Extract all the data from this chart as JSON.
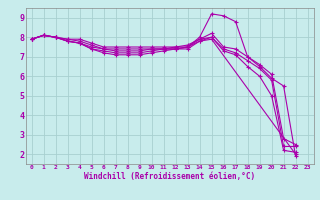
{
  "title": "",
  "xlabel": "Windchill (Refroidissement éolien,°C)",
  "bg_color": "#c8ecec",
  "grid_color": "#a8d0d0",
  "line_color": "#aa00aa",
  "tick_color": "#aa00aa",
  "xlim": [
    -0.5,
    23.5
  ],
  "ylim": [
    1.5,
    9.5
  ],
  "xticks": [
    0,
    1,
    2,
    3,
    4,
    5,
    6,
    7,
    8,
    9,
    10,
    11,
    12,
    13,
    14,
    15,
    16,
    17,
    18,
    19,
    20,
    21,
    22,
    23
  ],
  "yticks": [
    2,
    3,
    4,
    5,
    6,
    7,
    8,
    9
  ],
  "lines": [
    {
      "x": [
        0,
        1,
        2,
        3,
        4,
        5,
        6,
        7,
        8,
        9,
        10,
        11,
        12,
        13,
        14,
        15,
        16,
        17,
        18,
        19,
        20,
        21,
        22
      ],
      "y": [
        7.9,
        8.1,
        8.0,
        7.9,
        7.9,
        7.7,
        7.5,
        7.5,
        7.5,
        7.5,
        7.5,
        7.5,
        7.5,
        7.5,
        8.0,
        9.2,
        9.1,
        8.8,
        7.0,
        6.5,
        5.9,
        5.5,
        1.9
      ]
    },
    {
      "x": [
        0,
        1,
        2,
        3,
        4,
        5,
        6,
        7,
        8,
        9,
        10,
        11,
        12,
        13,
        14,
        15,
        16,
        17,
        18,
        19,
        20,
        21,
        22
      ],
      "y": [
        7.9,
        8.1,
        8.0,
        7.9,
        7.8,
        7.6,
        7.4,
        7.4,
        7.4,
        7.4,
        7.4,
        7.4,
        7.5,
        7.6,
        7.9,
        8.2,
        7.5,
        7.4,
        7.0,
        6.6,
        6.1,
        2.8,
        2.5
      ]
    },
    {
      "x": [
        0,
        1,
        2,
        3,
        4,
        5,
        6,
        7,
        8,
        9,
        10,
        11,
        12,
        13,
        14,
        15,
        16,
        17,
        18,
        19,
        20,
        21,
        22
      ],
      "y": [
        7.9,
        8.1,
        8.0,
        7.8,
        7.7,
        7.5,
        7.4,
        7.3,
        7.3,
        7.3,
        7.4,
        7.4,
        7.4,
        7.5,
        7.8,
        8.0,
        7.4,
        7.2,
        6.8,
        6.4,
        5.8,
        2.4,
        2.4
      ]
    },
    {
      "x": [
        0,
        1,
        2,
        3,
        4,
        5,
        6,
        7,
        8,
        9,
        10,
        11,
        12,
        13,
        14,
        15,
        16,
        17,
        18,
        19,
        20,
        21,
        22
      ],
      "y": [
        7.9,
        8.1,
        8.0,
        7.8,
        7.7,
        7.4,
        7.3,
        7.2,
        7.2,
        7.2,
        7.3,
        7.4,
        7.4,
        7.5,
        7.9,
        8.0,
        7.3,
        7.1,
        6.5,
        6.0,
        5.0,
        2.2,
        2.1
      ]
    },
    {
      "x": [
        0,
        1,
        2,
        3,
        4,
        5,
        6,
        7,
        8,
        9,
        10,
        11,
        12,
        13,
        14,
        15,
        22
      ],
      "y": [
        7.9,
        8.1,
        8.0,
        7.8,
        7.7,
        7.4,
        7.2,
        7.1,
        7.1,
        7.1,
        7.2,
        7.3,
        7.4,
        7.4,
        7.8,
        7.9,
        2.0
      ]
    }
  ],
  "figsize": [
    3.2,
    2.0
  ],
  "dpi": 100
}
